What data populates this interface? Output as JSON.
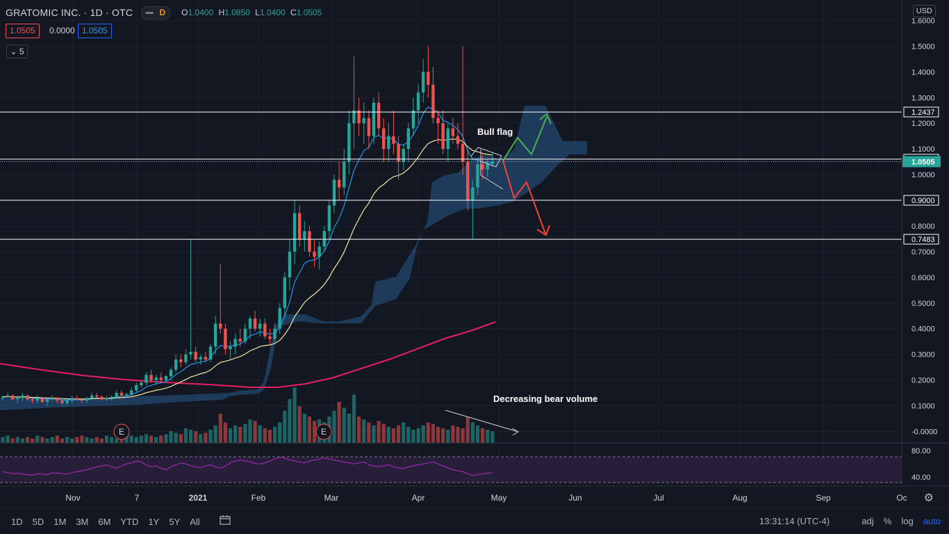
{
  "header": {
    "symbol": "GRATOMIC INC. · 1D · OTC",
    "interval_badge": "D",
    "o_label": "O",
    "o_value": "1.0400",
    "h_label": "H",
    "h_value": "1.0850",
    "l_label": "L",
    "l_value": "1.0400",
    "c_label": "C",
    "c_value": "1.0505",
    "bid": "1.0505",
    "change": "0.0000",
    "ask": "1.0505",
    "indicators_count": "5",
    "currency": "USD"
  },
  "colors": {
    "background": "#131722",
    "up": "#26a69a",
    "down": "#ef5350",
    "ema_fast": "#2196f3",
    "ema_slow": "#f5e9a6",
    "ma_long": "#e91e63",
    "cloud": "#2a5a8a",
    "rsi": "#9c27b0",
    "arrow_up": "#4caf50",
    "arrow_down": "#f44336"
  },
  "chart_data": {
    "type": "candlestick",
    "symbol": "GRATOMIC INC.",
    "interval": "1D",
    "exchange": "OTC",
    "price_axis": {
      "ticks": [
        "1.6000",
        "1.5000",
        "1.4000",
        "1.3000",
        "1.2000",
        "1.1000",
        "1.0000",
        "0.9000",
        "0.8000",
        "0.7000",
        "0.6000",
        "0.5000",
        "0.4000",
        "0.3000",
        "0.2000",
        "0.1000",
        "-0.0000"
      ],
      "ylim": [
        0,
        1.6
      ]
    },
    "time_axis": {
      "ticks": [
        "Nov",
        "7",
        "2021",
        "Feb",
        "Mar",
        "Apr",
        "May",
        "Jun",
        "Jul",
        "Aug",
        "Sep",
        "Oc"
      ]
    },
    "horizontal_levels": [
      {
        "value": 1.2437,
        "label": "1.2437"
      },
      {
        "value": 1.06,
        "label": "1.0600"
      },
      {
        "value": 0.9,
        "label": "0.9000"
      },
      {
        "value": 0.7483,
        "label": "0.7483"
      }
    ],
    "last_price": {
      "value": 1.0505,
      "label": "1.0505"
    },
    "rsi": {
      "ticks": [
        "80.00",
        "40.00"
      ],
      "upper": 70,
      "lower": 30
    },
    "annotations": [
      {
        "text": "Bull flag"
      },
      {
        "text": "Decreasing bear volume"
      }
    ],
    "earnings_markers": [
      "E",
      "E"
    ],
    "candles": [
      [
        0.13,
        0.14,
        0.12,
        0.135
      ],
      [
        0.135,
        0.15,
        0.13,
        0.14
      ],
      [
        0.14,
        0.145,
        0.12,
        0.125
      ],
      [
        0.125,
        0.14,
        0.11,
        0.13
      ],
      [
        0.13,
        0.15,
        0.12,
        0.14
      ],
      [
        0.14,
        0.145,
        0.12,
        0.125
      ],
      [
        0.125,
        0.13,
        0.11,
        0.12
      ],
      [
        0.12,
        0.14,
        0.11,
        0.13
      ],
      [
        0.13,
        0.135,
        0.11,
        0.115
      ],
      [
        0.115,
        0.13,
        0.1,
        0.125
      ],
      [
        0.125,
        0.14,
        0.12,
        0.13
      ],
      [
        0.13,
        0.135,
        0.11,
        0.12
      ],
      [
        0.12,
        0.13,
        0.1,
        0.11
      ],
      [
        0.11,
        0.13,
        0.1,
        0.12
      ],
      [
        0.12,
        0.14,
        0.11,
        0.13
      ],
      [
        0.13,
        0.14,
        0.12,
        0.125
      ],
      [
        0.125,
        0.13,
        0.11,
        0.12
      ],
      [
        0.12,
        0.135,
        0.11,
        0.13
      ],
      [
        0.13,
        0.15,
        0.12,
        0.14
      ],
      [
        0.14,
        0.15,
        0.13,
        0.135
      ],
      [
        0.135,
        0.14,
        0.12,
        0.125
      ],
      [
        0.125,
        0.14,
        0.12,
        0.13
      ],
      [
        0.13,
        0.14,
        0.12,
        0.135
      ],
      [
        0.135,
        0.16,
        0.13,
        0.15
      ],
      [
        0.15,
        0.16,
        0.13,
        0.14
      ],
      [
        0.14,
        0.15,
        0.13,
        0.145
      ],
      [
        0.145,
        0.17,
        0.14,
        0.16
      ],
      [
        0.16,
        0.19,
        0.15,
        0.18
      ],
      [
        0.18,
        0.2,
        0.17,
        0.19
      ],
      [
        0.19,
        0.23,
        0.18,
        0.22
      ],
      [
        0.22,
        0.24,
        0.19,
        0.2
      ],
      [
        0.2,
        0.22,
        0.18,
        0.21
      ],
      [
        0.21,
        0.23,
        0.19,
        0.2
      ],
      [
        0.2,
        0.22,
        0.19,
        0.215
      ],
      [
        0.215,
        0.25,
        0.2,
        0.24
      ],
      [
        0.24,
        0.3,
        0.23,
        0.28
      ],
      [
        0.28,
        0.3,
        0.25,
        0.27
      ],
      [
        0.27,
        0.32,
        0.26,
        0.3
      ],
      [
        0.3,
        0.75,
        0.28,
        0.31
      ],
      [
        0.31,
        0.33,
        0.27,
        0.28
      ],
      [
        0.28,
        0.3,
        0.26,
        0.29
      ],
      [
        0.29,
        0.31,
        0.27,
        0.28
      ],
      [
        0.28,
        0.34,
        0.27,
        0.33
      ],
      [
        0.33,
        0.45,
        0.3,
        0.42
      ],
      [
        0.42,
        0.65,
        0.38,
        0.4
      ],
      [
        0.4,
        0.42,
        0.3,
        0.32
      ],
      [
        0.32,
        0.35,
        0.28,
        0.33
      ],
      [
        0.33,
        0.38,
        0.3,
        0.36
      ],
      [
        0.36,
        0.4,
        0.33,
        0.35
      ],
      [
        0.35,
        0.42,
        0.34,
        0.4
      ],
      [
        0.4,
        0.45,
        0.36,
        0.44
      ],
      [
        0.44,
        0.47,
        0.39,
        0.4
      ],
      [
        0.4,
        0.44,
        0.37,
        0.42
      ],
      [
        0.42,
        0.44,
        0.36,
        0.37
      ],
      [
        0.37,
        0.4,
        0.34,
        0.36
      ],
      [
        0.36,
        0.42,
        0.34,
        0.4
      ],
      [
        0.4,
        0.5,
        0.38,
        0.48
      ],
      [
        0.48,
        0.62,
        0.45,
        0.6
      ],
      [
        0.6,
        0.75,
        0.55,
        0.7
      ],
      [
        0.7,
        0.9,
        0.65,
        0.85
      ],
      [
        0.85,
        0.88,
        0.72,
        0.75
      ],
      [
        0.75,
        0.82,
        0.7,
        0.78
      ],
      [
        0.78,
        0.8,
        0.68,
        0.7
      ],
      [
        0.7,
        0.75,
        0.64,
        0.68
      ],
      [
        0.68,
        0.74,
        0.63,
        0.72
      ],
      [
        0.72,
        0.8,
        0.7,
        0.78
      ],
      [
        0.78,
        0.9,
        0.75,
        0.88
      ],
      [
        0.88,
        1.0,
        0.85,
        0.98
      ],
      [
        0.98,
        1.05,
        0.9,
        0.95
      ],
      [
        0.95,
        1.1,
        0.92,
        1.05
      ],
      [
        1.05,
        1.25,
        1.0,
        1.2
      ],
      [
        1.2,
        1.46,
        1.1,
        1.25
      ],
      [
        1.25,
        1.3,
        1.15,
        1.2
      ],
      [
        1.2,
        1.28,
        1.12,
        1.22
      ],
      [
        1.22,
        1.25,
        1.1,
        1.15
      ],
      [
        1.15,
        1.3,
        1.12,
        1.28
      ],
      [
        1.28,
        1.32,
        1.15,
        1.18
      ],
      [
        1.18,
        1.22,
        1.05,
        1.1
      ],
      [
        1.1,
        1.2,
        1.05,
        1.15
      ],
      [
        1.15,
        1.25,
        1.08,
        1.12
      ],
      [
        1.12,
        1.15,
        0.98,
        1.05
      ],
      [
        1.05,
        1.12,
        1.02,
        1.1
      ],
      [
        1.1,
        1.2,
        1.05,
        1.18
      ],
      [
        1.18,
        1.3,
        1.15,
        1.25
      ],
      [
        1.25,
        1.35,
        1.2,
        1.32
      ],
      [
        1.32,
        1.45,
        1.28,
        1.4
      ],
      [
        1.4,
        1.5,
        1.3,
        1.35
      ],
      [
        1.35,
        1.42,
        1.2,
        1.22
      ],
      [
        1.22,
        1.25,
        1.12,
        1.2
      ],
      [
        1.2,
        1.25,
        1.08,
        1.1
      ],
      [
        1.1,
        1.2,
        1.05,
        1.18
      ],
      [
        1.18,
        1.22,
        1.12,
        1.15
      ],
      [
        1.15,
        1.2,
        1.1,
        1.12
      ],
      [
        1.12,
        1.5,
        1.0,
        1.05
      ],
      [
        1.05,
        1.1,
        0.86,
        0.9
      ],
      [
        0.9,
        0.98,
        0.75,
        0.95
      ],
      [
        0.95,
        1.06,
        0.92,
        1.04
      ],
      [
        1.04,
        1.08,
        0.98,
        1.02
      ],
      [
        1.02,
        1.06,
        0.99,
        1.04
      ],
      [
        1.04,
        1.085,
        1.04,
        1.0505
      ]
    ],
    "volume": [
      4,
      5,
      3,
      4,
      3,
      4,
      3,
      5,
      4,
      3,
      4,
      5,
      3,
      4,
      3,
      4,
      5,
      4,
      3,
      4,
      3,
      5,
      4,
      3,
      4,
      6,
      5,
      4,
      5,
      6,
      5,
      4,
      5,
      6,
      8,
      7,
      6,
      10,
      9,
      8,
      6,
      7,
      9,
      12,
      20,
      14,
      10,
      12,
      11,
      13,
      16,
      15,
      12,
      10,
      9,
      11,
      14,
      22,
      30,
      38,
      25,
      20,
      18,
      15,
      16,
      14,
      18,
      22,
      28,
      24,
      20,
      33,
      18,
      16,
      14,
      12,
      15,
      13,
      11,
      10,
      12,
      14,
      11,
      9,
      10,
      12,
      14,
      13,
      11,
      10,
      9,
      12,
      11,
      10,
      18,
      14,
      12,
      10,
      9,
      8
    ],
    "rsi_values": [
      48,
      46,
      44,
      45,
      43,
      42,
      41,
      44,
      43,
      42,
      46,
      45,
      44,
      43,
      46,
      48,
      50,
      52,
      55,
      58,
      60,
      62,
      58,
      55,
      60,
      64,
      66,
      70,
      68,
      62,
      58,
      60,
      55,
      52,
      58,
      62,
      66,
      64,
      60,
      58,
      56,
      60,
      62,
      58,
      55,
      60,
      66,
      70,
      72,
      70,
      68,
      65,
      64,
      66,
      70,
      74,
      78,
      76,
      72,
      70,
      68,
      66,
      70,
      72,
      74,
      76,
      74,
      72,
      70,
      68,
      66,
      64,
      66,
      68,
      62,
      60,
      58,
      60,
      62,
      58,
      56,
      54,
      58,
      60,
      62,
      64,
      66,
      68,
      64,
      60,
      56,
      52,
      50,
      48,
      44,
      40,
      42,
      44,
      45,
      46
    ]
  },
  "bottom_bar": {
    "timeframes": [
      "1D",
      "5D",
      "1M",
      "3M",
      "6M",
      "YTD",
      "1Y",
      "5Y",
      "All"
    ],
    "clock": "13:31:14 (UTC-4)",
    "adj": "adj",
    "percent": "%",
    "log": "log",
    "auto": "auto"
  }
}
